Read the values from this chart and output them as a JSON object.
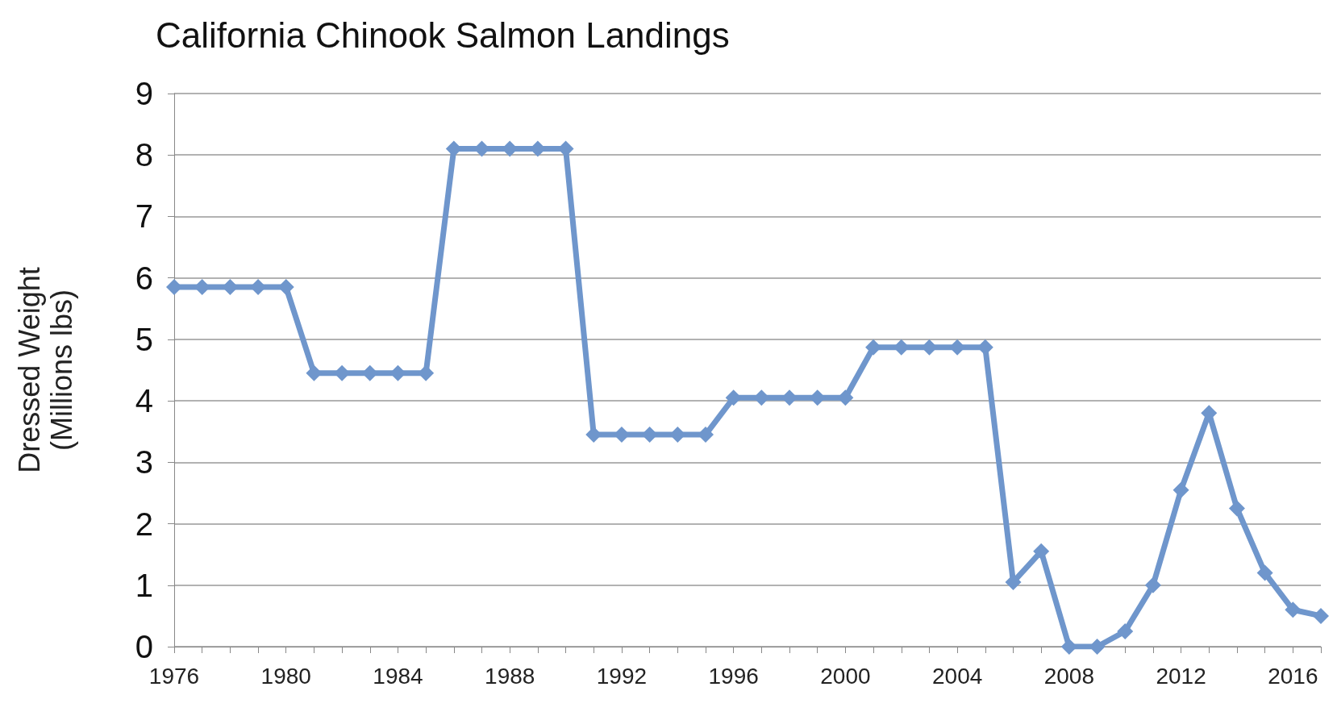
{
  "chart_data": {
    "type": "line",
    "title": "California Chinook Salmon Landings",
    "ylabel": "Dressed Weight\n(Millions lbs)",
    "categories": [
      "1976",
      null,
      null,
      null,
      "1980",
      null,
      null,
      null,
      "1984",
      null,
      null,
      null,
      "1988",
      null,
      null,
      null,
      "1992",
      null,
      null,
      null,
      "1996",
      null,
      null,
      null,
      "2000",
      null,
      null,
      null,
      "2004",
      null,
      null,
      null,
      "2008",
      null,
      null,
      null,
      "2012",
      null,
      null,
      null,
      "2016",
      null
    ],
    "series": [
      {
        "color": "#6f96cc",
        "values": [
          5.85,
          5.85,
          5.85,
          5.85,
          5.85,
          4.45,
          4.45,
          4.45,
          4.45,
          4.45,
          8.1,
          8.1,
          8.1,
          8.1,
          8.1,
          3.45,
          3.45,
          3.45,
          3.45,
          3.45,
          4.05,
          4.05,
          4.05,
          4.05,
          4.05,
          4.87,
          4.87,
          4.87,
          4.87,
          4.87,
          1.05,
          1.55,
          0,
          0,
          0.25,
          1.0,
          2.55,
          3.8,
          2.25,
          1.2,
          0.6,
          0.5
        ]
      }
    ],
    "ylim": [
      0,
      9
    ],
    "yticks": [
      0,
      1,
      2,
      3,
      4,
      5,
      6,
      7,
      8,
      9
    ],
    "grid": "y",
    "marker": "diamond",
    "line_style": "solid"
  }
}
